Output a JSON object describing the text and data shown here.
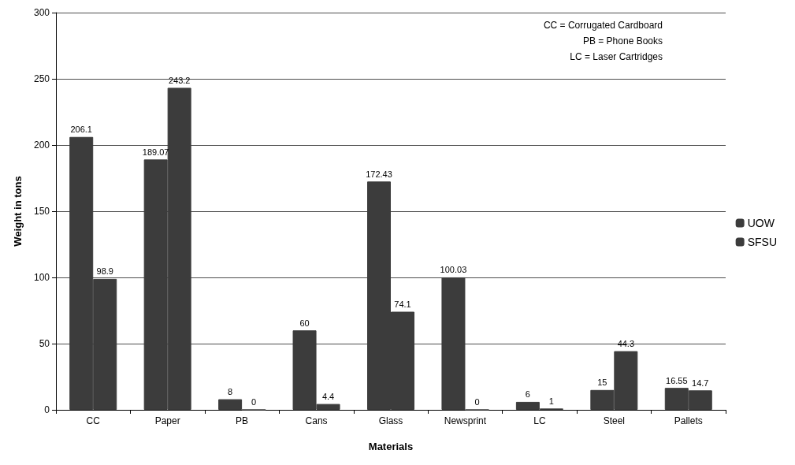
{
  "chart_data": {
    "type": "bar",
    "xlabel": "Materials",
    "ylabel": "Weight in tons",
    "categories": [
      "CC",
      "Paper",
      "PB",
      "Cans",
      "Glass",
      "Newsprint",
      "LC",
      "Steel",
      "Pallets"
    ],
    "series": [
      {
        "name": "UOW",
        "color": "#3c3c3c",
        "values": [
          206.1,
          189.07,
          8,
          60,
          172.43,
          100.03,
          6,
          15,
          16.55
        ]
      },
      {
        "name": "SFSU",
        "color": "#3c3c3c",
        "values": [
          98.9,
          243.2,
          0,
          4.4,
          74.1,
          0,
          1,
          44.3,
          14.7
        ]
      }
    ],
    "ylim": [
      0,
      300
    ],
    "yticks": [
      0,
      50,
      100,
      150,
      200,
      250,
      300
    ],
    "grid": "y",
    "legend": "right",
    "data_labels": true,
    "annotations": [
      "CC = Corrugated Cardboard",
      "PB = Phone Books",
      "LC = Laser Cartridges"
    ]
  }
}
